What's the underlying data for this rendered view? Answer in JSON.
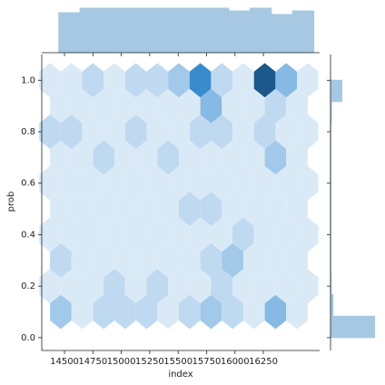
{
  "chart_data": [
    {
      "type": "hexbin",
      "xlabel": "index",
      "ylabel": "prob",
      "xlim": [
        14300,
        16745
      ],
      "ylim": [
        -0.05,
        1.1
      ],
      "xticks": [
        14500,
        14750,
        15000,
        15250,
        15500,
        15750,
        16000,
        16250
      ],
      "yticks": [
        {
          "value": 0,
          "label": "0.0"
        },
        0.2,
        0.4,
        0.6,
        0.8,
        {
          "value": 1,
          "label": "1.0"
        }
      ],
      "hex_width": 189,
      "cmap": [
        "#f5f9fd",
        "#3c8fd1",
        "#0b3a64",
        "#000000"
      ],
      "rows": [
        {
          "y": 0,
          "x": [
            14372,
            14561,
            14750,
            14939,
            15128,
            15317,
            15506,
            15695,
            15884,
            16073,
            16262,
            16451,
            16640
          ],
          "values": [
            5,
            20,
            17,
            20,
            13,
            17,
            6,
            5,
            8,
            8,
            8,
            5,
            2
          ]
        },
        {
          "y": 0.1,
          "x": [
            14467,
            14656,
            14845,
            15034,
            15223,
            15412,
            15601,
            15790,
            15979,
            16168,
            16357,
            16546
          ],
          "values": [
            3,
            1,
            2,
            2,
            2,
            1,
            2,
            3,
            2,
            1,
            4,
            1
          ]
        },
        {
          "y": 0.2,
          "x": [
            14372,
            14561,
            14750,
            14939,
            15128,
            15317,
            15506,
            15695,
            15884,
            16073,
            16262,
            16451,
            16640
          ],
          "values": [
            1,
            1,
            1,
            2,
            1,
            2,
            1,
            1,
            2,
            1,
            1,
            1,
            1
          ]
        },
        {
          "y": 0.3,
          "x": [
            14467,
            14656,
            14845,
            15034,
            15223,
            15412,
            15601,
            15790,
            15979,
            16168,
            16357,
            16546
          ],
          "values": [
            2,
            1,
            1,
            1,
            1,
            1,
            1,
            2,
            3,
            1,
            1,
            1
          ]
        },
        {
          "y": 0.4,
          "x": [
            14372,
            14561,
            14750,
            14939,
            15128,
            15317,
            15506,
            15695,
            15884,
            16073,
            16262,
            16451,
            16640
          ],
          "values": [
            1,
            1,
            1,
            1,
            1,
            1,
            1,
            1,
            1,
            2,
            1,
            1,
            1
          ]
        },
        {
          "y": 0.5,
          "x": [
            14467,
            14656,
            14845,
            15034,
            15223,
            15412,
            15601,
            15790,
            15979,
            16168,
            16357,
            16546
          ],
          "values": [
            1,
            1,
            1,
            1,
            1,
            1,
            2,
            2,
            1,
            1,
            1,
            1
          ]
        },
        {
          "y": 0.6,
          "x": [
            14372,
            14561,
            14750,
            14939,
            15128,
            15317,
            15506,
            15695,
            15884,
            16073,
            16262,
            16451,
            16640
          ],
          "values": [
            1,
            1,
            1,
            1,
            1,
            1,
            1,
            1,
            1,
            1,
            1,
            1,
            1
          ]
        },
        {
          "y": 0.7,
          "x": [
            14467,
            14656,
            14845,
            15034,
            15223,
            15412,
            15601,
            15790,
            15979,
            16168,
            16357,
            16546
          ],
          "values": [
            1,
            1,
            2,
            1,
            1,
            2,
            1,
            1,
            1,
            1,
            3,
            1
          ]
        },
        {
          "y": 0.8,
          "x": [
            14372,
            14561,
            14750,
            14939,
            15128,
            15317,
            15506,
            15695,
            15884,
            16073,
            16262,
            16451,
            16640
          ],
          "values": [
            2,
            2,
            1,
            1,
            2,
            1,
            1,
            2,
            2,
            1,
            2,
            1,
            1
          ]
        },
        {
          "y": 0.9,
          "x": [
            14467,
            14656,
            14845,
            15034,
            15223,
            15412,
            15601,
            15790,
            15979,
            16168,
            16357,
            16546
          ],
          "values": [
            1,
            1,
            1,
            1,
            1,
            1,
            1,
            4,
            1,
            1,
            2,
            1
          ]
        },
        {
          "y": 1,
          "x": [
            14372,
            14561,
            14750,
            14939,
            15128,
            15317,
            15506,
            15695,
            15884,
            16073,
            16262,
            16451,
            16640
          ],
          "values": [
            1,
            1,
            2,
            1,
            2,
            2,
            3,
            7,
            2,
            1,
            11,
            4,
            1
          ]
        }
      ]
    },
    {
      "type": "histogram",
      "orientation": "vertical",
      "color": "#a6c8e2",
      "bins": [
        14450,
        14637,
        14824,
        15011,
        15198,
        15385,
        15572,
        15759,
        15946,
        16133,
        16320,
        16507,
        16694
      ],
      "values": [
        44,
        49,
        49,
        49,
        49,
        49,
        49,
        49,
        46,
        49,
        42,
        46
      ],
      "ylim": [
        0,
        50
      ]
    },
    {
      "type": "histogram",
      "orientation": "horizontal",
      "color": "#a6c8e2",
      "bins": [
        0,
        0.083,
        0.167,
        0.25,
        0.333,
        0.417,
        0.5,
        0.583,
        0.667,
        0.75,
        0.833,
        0.917,
        1.0
      ],
      "values": [
        140,
        8,
        2,
        1,
        1,
        1,
        1,
        1,
        1,
        1,
        3,
        36
      ],
      "xlim": [
        0,
        150
      ]
    }
  ]
}
